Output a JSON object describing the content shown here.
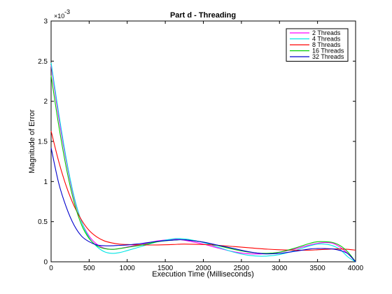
{
  "chart_data": {
    "type": "line",
    "title": "Part d - Threading",
    "xlabel": "Execution Time (Milliseconds)",
    "ylabel": "Magnitude of Error",
    "xlim": [
      0,
      4000
    ],
    "ylim": [
      0,
      0.003
    ],
    "y_scale_label": "×10",
    "y_scale_exponent": "-3",
    "x_ticks": [
      0,
      500,
      1000,
      1500,
      2000,
      2500,
      3000,
      3500,
      4000
    ],
    "x_tick_labels": [
      "0",
      "500",
      "1000",
      "1500",
      "2000",
      "2500",
      "3000",
      "3500",
      "4000"
    ],
    "y_ticks": [
      0,
      0.0005,
      0.001,
      0.0015,
      0.002,
      0.0025,
      0.003
    ],
    "y_tick_labels": [
      "0",
      "0.5",
      "1",
      "1.5",
      "2",
      "2.5",
      "3"
    ],
    "grid": false,
    "legend_position": "top-right",
    "x": [
      0,
      100,
      200,
      300,
      400,
      500,
      600,
      700,
      800,
      900,
      1000,
      1200,
      1400,
      1600,
      1700,
      1800,
      2000,
      2200,
      2400,
      2600,
      2800,
      3000,
      3200,
      3400,
      3500,
      3600,
      3700,
      3800,
      3900,
      4000
    ],
    "series": [
      {
        "name": "2 Threads",
        "color": "#ff00ff",
        "values": [
          0.00245,
          0.0018,
          0.00125,
          0.0008,
          0.0005,
          0.00032,
          0.00022,
          0.00017,
          0.000155,
          0.000165,
          0.000185,
          0.00022,
          0.00026,
          0.00028,
          0.000275,
          0.00026,
          0.00022,
          0.00017,
          0.000125,
          0.0001,
          0.0001,
          0.00012,
          0.00016,
          0.00021,
          0.00023,
          0.00024,
          0.00023,
          0.00018,
          0.0001,
          0.0
        ]
      },
      {
        "name": "4 Threads",
        "color": "#00e5e5",
        "values": [
          0.00248,
          0.00185,
          0.00128,
          0.00082,
          0.0005,
          0.0003,
          0.00019,
          0.000125,
          0.000105,
          0.000115,
          0.00014,
          0.000195,
          0.00025,
          0.000285,
          0.00029,
          0.00028,
          0.00024,
          0.00018,
          0.00012,
          8e-05,
          7e-05,
          9e-05,
          0.00014,
          0.0002,
          0.00022,
          0.00022,
          0.0002,
          0.00015,
          6e-05,
          0.0
        ]
      },
      {
        "name": "8 Threads",
        "color": "#ff0000",
        "values": [
          0.00163,
          0.00125,
          0.00094,
          0.0007,
          0.00052,
          0.00039,
          0.00031,
          0.00026,
          0.000235,
          0.00022,
          0.000215,
          0.00021,
          0.00021,
          0.000215,
          0.00022,
          0.00022,
          0.000215,
          0.000205,
          0.00019,
          0.000175,
          0.00016,
          0.00015,
          0.000145,
          0.000145,
          0.00015,
          0.000155,
          0.00016,
          0.00016,
          0.000155,
          0.000145
        ]
      },
      {
        "name": "16 Threads",
        "color": "#00cc00",
        "values": [
          0.00232,
          0.0017,
          0.00117,
          0.00075,
          0.00046,
          0.00029,
          0.0002,
          0.000165,
          0.000155,
          0.000165,
          0.00018,
          0.00021,
          0.00025,
          0.00027,
          0.000275,
          0.00027,
          0.000245,
          0.0002,
          0.000155,
          0.00012,
          0.000105,
          0.00012,
          0.00017,
          0.00023,
          0.00025,
          0.00025,
          0.00024,
          0.0002,
          0.00012,
          0.0
        ]
      },
      {
        "name": "32 Threads",
        "color": "#0000cc",
        "values": [
          0.00142,
          0.00098,
          0.00068,
          0.00046,
          0.00032,
          0.00025,
          0.00021,
          0.0002,
          0.0002,
          0.000205,
          0.00021,
          0.00023,
          0.000255,
          0.00027,
          0.000275,
          0.00027,
          0.000245,
          0.000205,
          0.000165,
          0.000125,
          0.0001,
          0.000105,
          0.00013,
          0.00016,
          0.000165,
          0.000165,
          0.00016,
          0.00014,
          0.0001,
          0.0
        ]
      }
    ]
  }
}
